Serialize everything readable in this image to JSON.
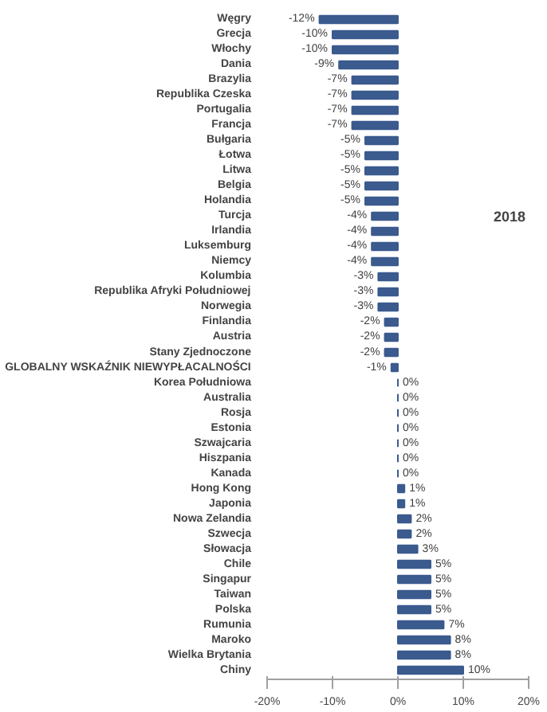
{
  "chart_data": {
    "type": "bar",
    "orientation": "horizontal",
    "categories": [
      "Węgry",
      "Grecja",
      "Włochy",
      "Dania",
      "Brazylia",
      "Republika Czeska",
      "Portugalia",
      "Francja",
      "Bułgaria",
      "Łotwa",
      "Litwa",
      "Belgia",
      "Holandia",
      "Turcja",
      "Irlandia",
      "Luksemburg",
      "Niemcy",
      "Kolumbia",
      "Republika Afryki Południowej",
      "Norwegia",
      "Finlandia",
      "Austria",
      "Stany Zjednoczone",
      "GLOBALNY WSKAŹNIK NIEWYPŁACALNOŚCI",
      "Korea Południowa",
      "Australia",
      "Rosja",
      "Estonia",
      "Szwajcaria",
      "Hiszpania",
      "Kanada",
      "Hong Kong",
      "Japonia",
      "Nowa Zelandia",
      "Szwecja",
      "Słowacja",
      "Chile",
      "Singapur",
      "Taiwan",
      "Polska",
      "Rumunia",
      "Maroko",
      "Wielka Brytania",
      "Chiny"
    ],
    "values": [
      -12,
      -10,
      -10,
      -9,
      -7,
      -7,
      -7,
      -7,
      -5,
      -5,
      -5,
      -5,
      -5,
      -4,
      -4,
      -4,
      -4,
      -3,
      -3,
      -3,
      -2,
      -2,
      -2,
      -1,
      0,
      0,
      0,
      0,
      0,
      0,
      0,
      1,
      1,
      2,
      2,
      3,
      5,
      5,
      5,
      5,
      7,
      8,
      8,
      10
    ],
    "value_labels": [
      "-12%",
      "-10%",
      "-10%",
      "-9%",
      "-7%",
      "-7%",
      "-7%",
      "-7%",
      "-5%",
      "-5%",
      "-5%",
      "-5%",
      "-5%",
      "-4%",
      "-4%",
      "-4%",
      "-4%",
      "-3%",
      "-3%",
      "-3%",
      "-2%",
      "-2%",
      "-2%",
      "-1%",
      "0%",
      "0%",
      "0%",
      "0%",
      "0%",
      "0%",
      "0%",
      "1%",
      "1%",
      "2%",
      "2%",
      "3%",
      "5%",
      "5%",
      "5%",
      "5%",
      "7%",
      "8%",
      "8%",
      "10%"
    ],
    "color": "#3b5a8e",
    "xlim": [
      -20,
      20
    ],
    "xticks": [
      {
        "value": -20,
        "label": "-20%"
      },
      {
        "value": -10,
        "label": "-10%"
      },
      {
        "value": 0,
        "label": "0%"
      },
      {
        "value": 10,
        "label": "10%"
      },
      {
        "value": 20,
        "label": "20%"
      }
    ],
    "annotations": [
      "2018"
    ],
    "grid": false
  }
}
